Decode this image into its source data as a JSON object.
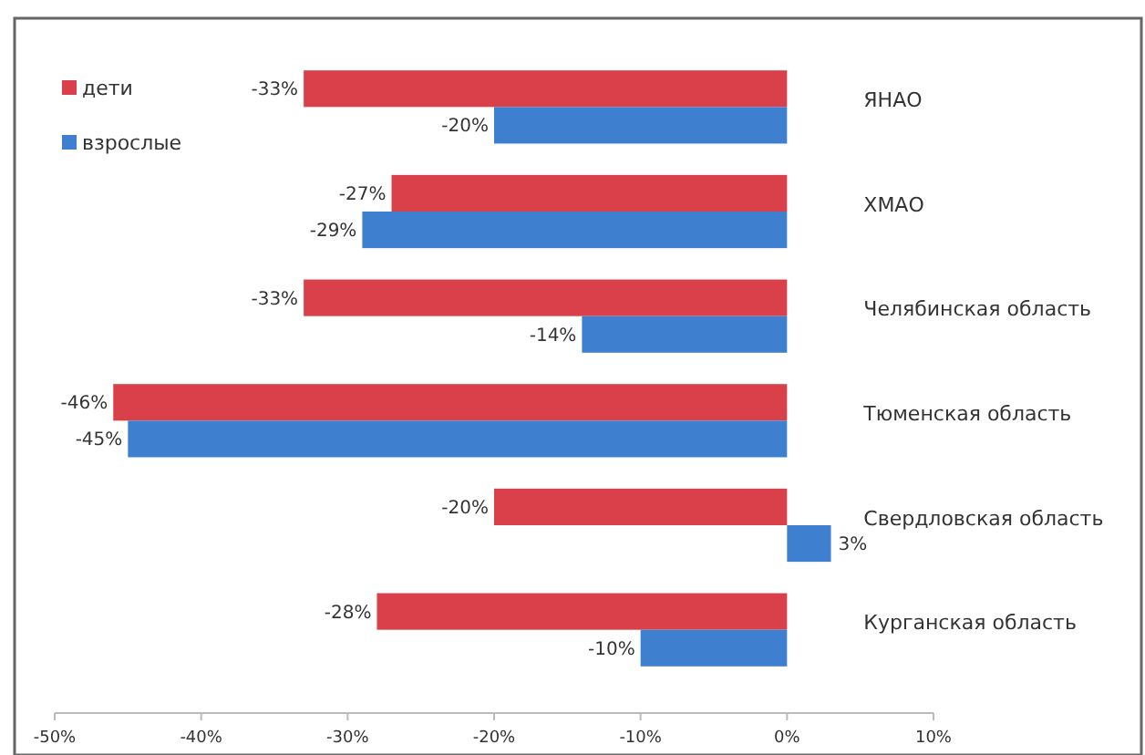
{
  "chart_data": {
    "type": "bar",
    "orientation": "horizontal",
    "categories": [
      "ЯНАО",
      "ХМАО",
      "Челябинская область",
      "Тюменская область",
      "Свердловская область",
      "Курганская область"
    ],
    "series": [
      {
        "name": "дети",
        "color": "#d9404a",
        "values": [
          -33,
          -27,
          -33,
          -46,
          -20,
          -28
        ],
        "value_labels": [
          "-33%",
          "-27%",
          "-33%",
          "-46%",
          "-20%",
          "-28%"
        ]
      },
      {
        "name": "взрослые",
        "color": "#3f7fd0",
        "values": [
          -20,
          -29,
          -14,
          -45,
          3,
          -10
        ],
        "value_labels": [
          "-20%",
          "-29%",
          "-14%",
          "-45%",
          "3%",
          "-10%"
        ]
      }
    ],
    "xlim": [
      -50,
      10
    ],
    "xticks": [
      {
        "value": -50,
        "label": "-50%"
      },
      {
        "value": -40,
        "label": "-40%"
      },
      {
        "value": -30,
        "label": "-30%"
      },
      {
        "value": -20,
        "label": "-20%"
      },
      {
        "value": -10,
        "label": "-10%"
      },
      {
        "value": 0,
        "label": "0%"
      },
      {
        "value": 10,
        "label": "10%"
      }
    ],
    "grid": false,
    "legend": "top left"
  }
}
